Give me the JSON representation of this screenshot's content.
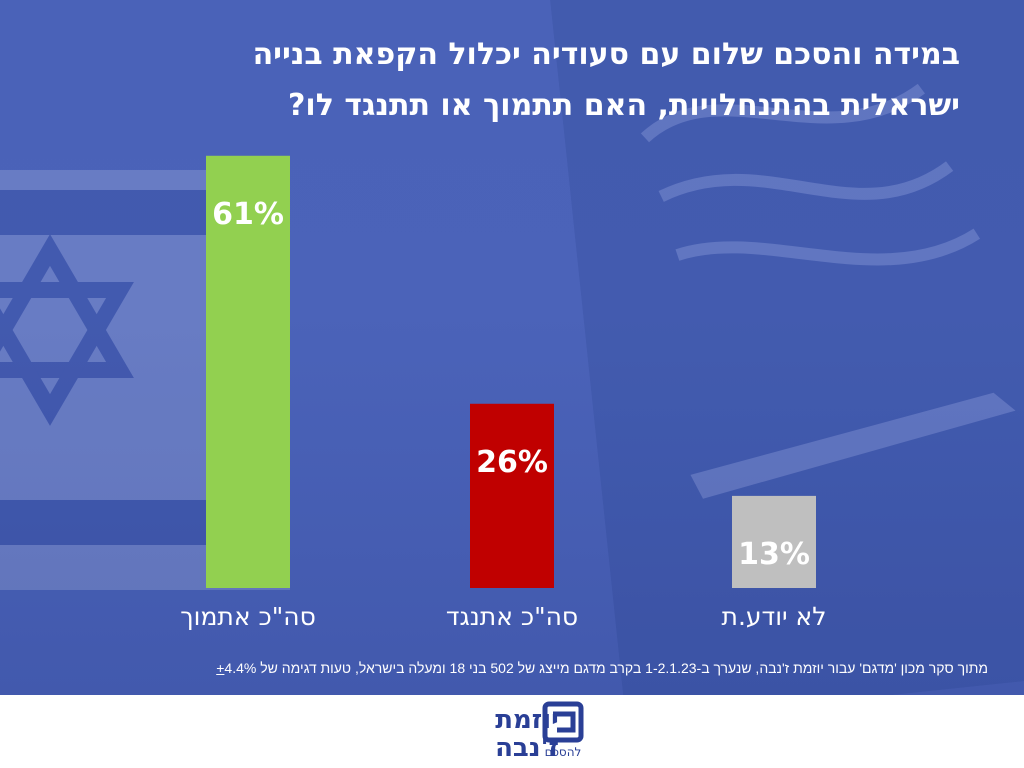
{
  "title": {
    "line1": "במידה והסכם שלום עם סעודיה יכלול הקפאת בנייה",
    "line2": "ישראלית בהתנחלויות, האם תתמוך  או תתנגד לו?"
  },
  "chart_data": {
    "type": "bar",
    "categories": [
      "סה\"כ אתמוך",
      "סה\"כ אתנגד",
      "לא יודע.ת"
    ],
    "values": [
      61,
      26,
      13
    ],
    "value_labels": [
      "61%",
      "26%",
      "13%"
    ],
    "colors": [
      "#92d050",
      "#c00000",
      "#bfbfbf"
    ],
    "ylim": [
      0,
      70
    ],
    "grid": false,
    "legend": "none"
  },
  "footnote": {
    "text": "מתוך סקר מכון 'מדגם' עבור יוזמת ז'נבה, שנערך ב-1-2.1.23 בקרב מדגם מייצג של 502 בני 18 ומעלה בישראל, טעות דגימה של 4.4%",
    "plusminus": "+"
  },
  "logo": {
    "line1": "יוזמת",
    "line2": "ז'נבה",
    "tagline": "להסכם",
    "color": "#2a3f96"
  }
}
